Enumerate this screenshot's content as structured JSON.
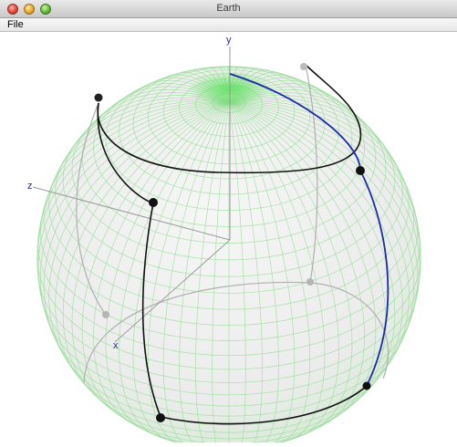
{
  "window": {
    "title": "Earth"
  },
  "menu": {
    "items": [
      {
        "label": "File"
      }
    ]
  },
  "scene": {
    "axes": {
      "x_label": "x",
      "y_label": "y",
      "z_label": "z"
    },
    "colors": {
      "globe_grid": "#8fdc8f",
      "globe_fill": "#eeeeee",
      "front_curve": "#111111",
      "back_curve": "#b0b0b0",
      "meridian_highlight": "#1a2aa8",
      "axis_line": "#9a9a9a"
    }
  }
}
